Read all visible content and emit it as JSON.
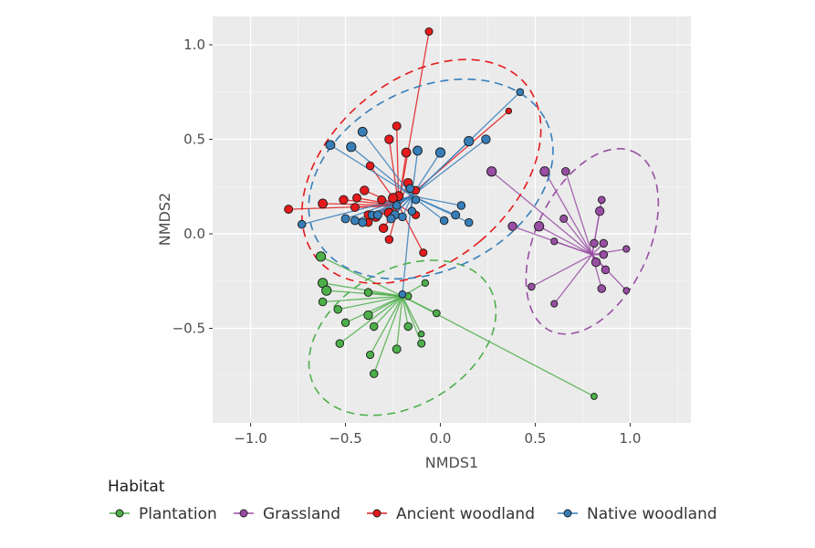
{
  "chart_data": {
    "type": "scatter",
    "title": "",
    "xlabel": "NMDS1",
    "ylabel": "NMDS2",
    "xlim": [
      -1.2,
      1.32
    ],
    "ylim": [
      -1.0,
      1.15
    ],
    "xticks": [
      -1.0,
      -0.5,
      0.0,
      0.5,
      1.0
    ],
    "xtick_labels": [
      "−1.0",
      "−0.5",
      "0.0",
      "0.5",
      "1.0"
    ],
    "yticks": [
      -0.5,
      0.0,
      0.5,
      1.0
    ],
    "ytick_labels": [
      "−0.5",
      "0.0",
      "0.5",
      "1.0"
    ],
    "grid": true,
    "legend": {
      "title": "Habitat",
      "position": "bottom"
    },
    "series": [
      {
        "name": "Plantation",
        "color": "#4daf4a",
        "centroid": [
          -0.2,
          -0.33
        ],
        "ellipse": {
          "cx": -0.2,
          "cy": -0.55,
          "rx": 0.53,
          "ry": 0.36,
          "angle_deg": -30
        },
        "points": [
          [
            -0.63,
            -0.12,
            1.2
          ],
          [
            -0.62,
            -0.26,
            1.2
          ],
          [
            -0.6,
            -0.3,
            1.2
          ],
          [
            -0.62,
            -0.36,
            1.0
          ],
          [
            -0.38,
            -0.31,
            1.0
          ],
          [
            -0.54,
            -0.4,
            1.0
          ],
          [
            -0.38,
            -0.43,
            1.1
          ],
          [
            -0.5,
            -0.47,
            1.0
          ],
          [
            -0.35,
            -0.49,
            1.0
          ],
          [
            -0.17,
            -0.33,
            0.9
          ],
          [
            -0.08,
            -0.26,
            0.85
          ],
          [
            -0.02,
            -0.42,
            0.9
          ],
          [
            -0.17,
            -0.49,
            1.0
          ],
          [
            -0.1,
            -0.53,
            0.75
          ],
          [
            -0.1,
            -0.58,
            0.95
          ],
          [
            -0.53,
            -0.58,
            1.0
          ],
          [
            -0.37,
            -0.64,
            0.95
          ],
          [
            -0.23,
            -0.61,
            1.05
          ],
          [
            -0.35,
            -0.74,
            1.0
          ],
          [
            0.81,
            -0.86,
            0.8
          ]
        ]
      },
      {
        "name": "Grassland",
        "color": "#984ea3",
        "centroid": [
          0.8,
          -0.11
        ],
        "ellipse": {
          "cx": 0.8,
          "cy": -0.04,
          "rx": 0.52,
          "ry": 0.3,
          "angle_deg": -65
        },
        "points": [
          [
            0.27,
            0.33,
            1.2
          ],
          [
            0.55,
            0.33,
            1.2
          ],
          [
            0.66,
            0.33,
            1.0
          ],
          [
            0.85,
            0.18,
            0.9
          ],
          [
            0.84,
            0.12,
            1.1
          ],
          [
            0.52,
            0.04,
            1.2
          ],
          [
            0.65,
            0.08,
            0.95
          ],
          [
            0.38,
            0.04,
            1.1
          ],
          [
            0.6,
            -0.04,
            0.85
          ],
          [
            0.86,
            -0.05,
            1.0
          ],
          [
            0.81,
            -0.05,
            1.0
          ],
          [
            0.98,
            -0.08,
            0.85
          ],
          [
            0.86,
            -0.11,
            1.0
          ],
          [
            0.82,
            -0.15,
            1.1
          ],
          [
            0.87,
            -0.19,
            1.0
          ],
          [
            0.85,
            -0.29,
            1.0
          ],
          [
            0.48,
            -0.28,
            0.9
          ],
          [
            0.6,
            -0.37,
            0.85
          ],
          [
            0.98,
            -0.3,
            0.8
          ]
        ]
      },
      {
        "name": "Ancient woodland",
        "color": "#e41a1c",
        "centroid": [
          -0.22,
          0.15
        ],
        "ellipse": {
          "cx": -0.1,
          "cy": 0.33,
          "rx": 0.48,
          "ry": 0.72,
          "angle_deg": 50
        },
        "points": [
          [
            -0.06,
            1.07,
            0.95
          ],
          [
            0.36,
            0.65,
            0.75
          ],
          [
            -0.23,
            0.57,
            1.05
          ],
          [
            -0.27,
            0.5,
            1.1
          ],
          [
            -0.18,
            0.43,
            1.15
          ],
          [
            -0.37,
            0.36,
            1.0
          ],
          [
            -0.22,
            0.2,
            1.15
          ],
          [
            -0.17,
            0.27,
            1.1
          ],
          [
            -0.13,
            0.23,
            1.0
          ],
          [
            -0.4,
            0.23,
            1.1
          ],
          [
            -0.44,
            0.19,
            1.05
          ],
          [
            -0.31,
            0.18,
            1.05
          ],
          [
            -0.25,
            0.19,
            1.15
          ],
          [
            -0.51,
            0.18,
            1.1
          ],
          [
            -0.62,
            0.16,
            1.15
          ],
          [
            -0.45,
            0.14,
            1.05
          ],
          [
            -0.38,
            0.1,
            1.05
          ],
          [
            -0.27,
            0.11,
            1.2
          ],
          [
            -0.13,
            0.1,
            1.0
          ],
          [
            -0.34,
            0.09,
            1.15
          ],
          [
            -0.3,
            0.03,
            1.1
          ],
          [
            -0.38,
            0.06,
            1.0
          ],
          [
            -0.27,
            -0.03,
            1.0
          ],
          [
            -0.09,
            -0.1,
            0.95
          ],
          [
            -0.8,
            0.13,
            1.05
          ]
        ]
      },
      {
        "name": "Native woodland",
        "color": "#377eb8",
        "centroid": [
          -0.15,
          0.2
        ],
        "ellipse": {
          "cx": -0.05,
          "cy": 0.29,
          "rx": 0.68,
          "ry": 0.48,
          "angle_deg": -27
        },
        "points": [
          [
            0.42,
            0.75,
            0.9
          ],
          [
            -0.41,
            0.54,
            1.15
          ],
          [
            -0.58,
            0.47,
            1.15
          ],
          [
            -0.47,
            0.46,
            1.2
          ],
          [
            -0.12,
            0.44,
            1.15
          ],
          [
            0.0,
            0.43,
            1.2
          ],
          [
            0.15,
            0.49,
            1.2
          ],
          [
            0.24,
            0.5,
            1.1
          ],
          [
            -0.16,
            0.24,
            1.0
          ],
          [
            -0.13,
            0.18,
            1.0
          ],
          [
            -0.23,
            0.15,
            1.0
          ],
          [
            -0.36,
            0.1,
            1.0
          ],
          [
            -0.24,
            0.1,
            1.1
          ],
          [
            -0.5,
            0.08,
            1.05
          ],
          [
            -0.45,
            0.07,
            1.05
          ],
          [
            -0.41,
            0.06,
            1.05
          ],
          [
            -0.33,
            0.1,
            1.05
          ],
          [
            -0.26,
            0.08,
            1.05
          ],
          [
            -0.2,
            0.09,
            1.0
          ],
          [
            -0.15,
            0.12,
            1.0
          ],
          [
            0.02,
            0.07,
            1.0
          ],
          [
            0.08,
            0.1,
            1.05
          ],
          [
            0.11,
            0.15,
            1.0
          ],
          [
            0.15,
            0.06,
            1.0
          ],
          [
            -0.73,
            0.05,
            1.0
          ],
          [
            -0.2,
            -0.32,
            0.9
          ]
        ]
      }
    ]
  }
}
